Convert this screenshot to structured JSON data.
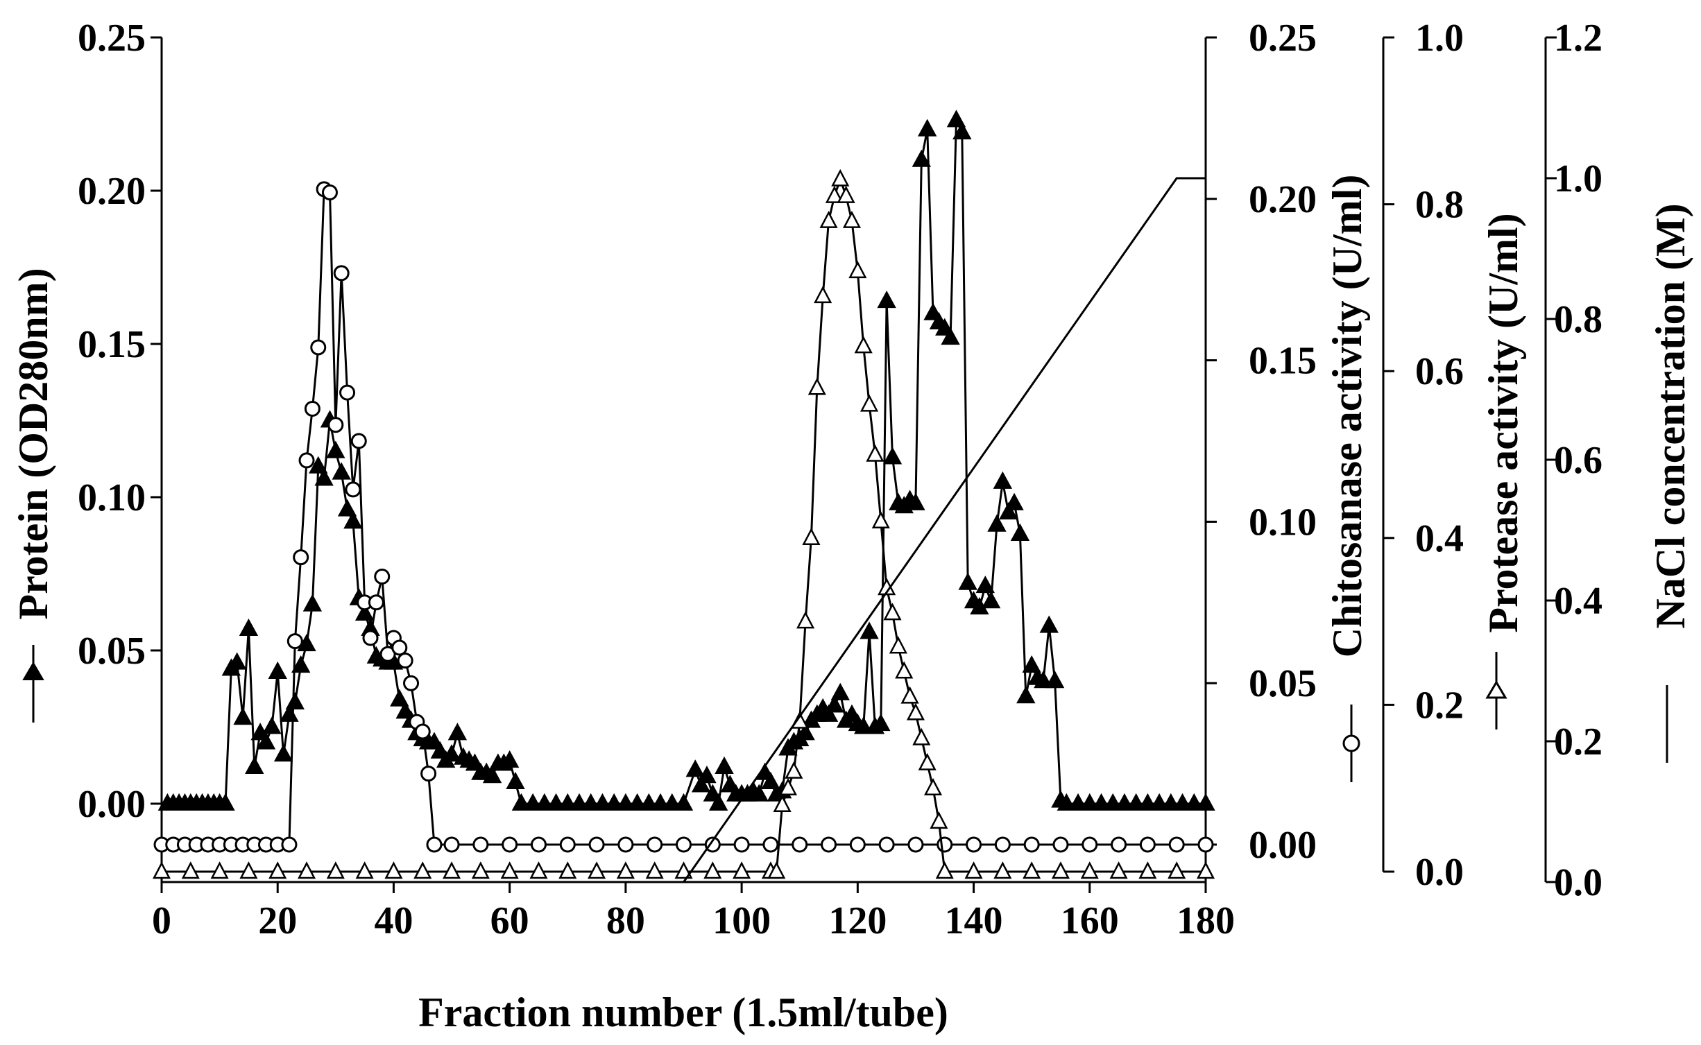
{
  "chart_data": {
    "type": "line",
    "title": "",
    "xlabel": "Fraction number (1.5ml/tube)",
    "xlim": [
      0,
      180
    ],
    "x_ticks": [
      0,
      20,
      40,
      60,
      80,
      100,
      120,
      140,
      160,
      180
    ],
    "axes": {
      "protein": {
        "label": "Protein (OD280nm)",
        "range": [
          -0.025,
          0.25
        ],
        "ticks": [
          "0.00",
          "0.05",
          "0.10",
          "0.15",
          "0.20",
          "0.25"
        ]
      },
      "chitosanase": {
        "label": "Chitosanase activity (U/ml)",
        "range": [
          -0.01,
          0.25
        ],
        "ticks": [
          "0.00",
          "0.05",
          "0.10",
          "0.15",
          "0.20",
          "0.25"
        ]
      },
      "protease": {
        "label": "Protease activity (U/ml)",
        "range": [
          0,
          1.0
        ],
        "ticks": [
          "0.0",
          "0.2",
          "0.4",
          "0.6",
          "0.8",
          "1.0"
        ]
      },
      "nacl": {
        "label": "NaCl concentration (M)",
        "range": [
          0,
          1.2
        ],
        "ticks": [
          "0.0",
          "0.2",
          "0.4",
          "0.6",
          "0.8",
          "1.0",
          "1.2"
        ]
      }
    },
    "grid": false,
    "series": [
      {
        "marker": "filled-triangle",
        "axis": "protein",
        "points": [
          [
            1,
            0
          ],
          [
            2,
            0
          ],
          [
            3,
            0
          ],
          [
            4,
            0
          ],
          [
            5,
            0
          ],
          [
            6,
            0
          ],
          [
            7,
            0
          ],
          [
            8,
            0
          ],
          [
            9,
            0
          ],
          [
            10,
            0
          ],
          [
            11,
            0
          ],
          [
            12,
            0.044
          ],
          [
            13,
            0.046
          ],
          [
            14,
            0.028
          ],
          [
            15,
            0.057
          ],
          [
            16,
            0.012
          ],
          [
            17,
            0.023
          ],
          [
            18,
            0.02
          ],
          [
            19,
            0.025
          ],
          [
            20,
            0.043
          ],
          [
            21,
            0.016
          ],
          [
            22,
            0.029
          ],
          [
            23,
            0.033
          ],
          [
            24,
            0.045
          ],
          [
            25,
            0.052
          ],
          [
            26,
            0.065
          ],
          [
            27,
            0.11
          ],
          [
            28,
            0.106
          ],
          [
            29,
            0.125
          ],
          [
            30,
            0.115
          ],
          [
            31,
            0.108
          ],
          [
            32,
            0.096
          ],
          [
            33,
            0.092
          ],
          [
            34,
            0.067
          ],
          [
            35,
            0.062
          ],
          [
            36,
            0.057
          ],
          [
            37,
            0.048
          ],
          [
            38,
            0.047
          ],
          [
            39,
            0.046
          ],
          [
            40,
            0.046
          ],
          [
            41,
            0.034
          ],
          [
            42,
            0.03
          ],
          [
            43,
            0.027
          ],
          [
            44,
            0.023
          ],
          [
            45,
            0.021
          ],
          [
            46,
            0.02
          ],
          [
            47,
            0.02
          ],
          [
            48,
            0.017
          ],
          [
            49,
            0.014
          ],
          [
            50,
            0.016
          ],
          [
            51,
            0.023
          ],
          [
            52,
            0.015
          ],
          [
            53,
            0.014
          ],
          [
            54,
            0.013
          ],
          [
            55,
            0.01
          ],
          [
            56,
            0.01
          ],
          [
            57,
            0.009
          ],
          [
            58,
            0.013
          ],
          [
            59,
            0.013
          ],
          [
            60,
            0.014
          ],
          [
            61,
            0.007
          ],
          [
            62,
            0
          ],
          [
            64,
            0
          ],
          [
            66,
            0
          ],
          [
            68,
            0
          ],
          [
            70,
            0
          ],
          [
            72,
            0
          ],
          [
            74,
            0
          ],
          [
            76,
            0
          ],
          [
            78,
            0
          ],
          [
            80,
            0
          ],
          [
            82,
            0
          ],
          [
            84,
            0
          ],
          [
            86,
            0
          ],
          [
            88,
            0
          ],
          [
            90,
            0
          ],
          [
            92,
            0.011
          ],
          [
            93,
            0.006
          ],
          [
            94,
            0.009
          ],
          [
            95,
            0.003
          ],
          [
            96,
            0
          ],
          [
            97,
            0.012
          ],
          [
            98,
            0.006
          ],
          [
            99,
            0.003
          ],
          [
            100,
            0.003
          ],
          [
            101,
            0.003
          ],
          [
            102,
            0.004
          ],
          [
            103,
            0.003
          ],
          [
            104,
            0.01
          ],
          [
            105,
            0.007
          ],
          [
            106,
            0.003
          ],
          [
            107,
            0.004
          ],
          [
            108,
            0.018
          ],
          [
            109,
            0.02
          ],
          [
            110,
            0.021
          ],
          [
            111,
            0.023
          ],
          [
            112,
            0.027
          ],
          [
            113,
            0.029
          ],
          [
            114,
            0.031
          ],
          [
            115,
            0.029
          ],
          [
            116,
            0.032
          ],
          [
            117,
            0.036
          ],
          [
            118,
            0.027
          ],
          [
            119,
            0.029
          ],
          [
            120,
            0.026
          ],
          [
            121,
            0.025
          ],
          [
            122,
            0.056
          ],
          [
            123,
            0.025
          ],
          [
            124,
            0.026
          ],
          [
            125,
            0.164
          ],
          [
            126,
            0.113
          ],
          [
            127,
            0.098
          ],
          [
            128,
            0.097
          ],
          [
            129,
            0.099
          ],
          [
            130,
            0.098
          ],
          [
            131,
            0.21
          ],
          [
            132,
            0.22
          ],
          [
            133,
            0.16
          ],
          [
            134,
            0.157
          ],
          [
            135,
            0.155
          ],
          [
            136,
            0.152
          ],
          [
            137,
            0.223
          ],
          [
            138,
            0.219
          ],
          [
            139,
            0.072
          ],
          [
            140,
            0.066
          ],
          [
            141,
            0.064
          ],
          [
            142,
            0.071
          ],
          [
            143,
            0.066
          ],
          [
            144,
            0.091
          ],
          [
            145,
            0.105
          ],
          [
            146,
            0.095
          ],
          [
            147,
            0.098
          ],
          [
            148,
            0.088
          ],
          [
            149,
            0.035
          ],
          [
            150,
            0.045
          ],
          [
            151,
            0.041
          ],
          [
            152,
            0.04
          ],
          [
            153,
            0.058
          ],
          [
            154,
            0.04
          ],
          [
            155,
            0.001
          ],
          [
            156,
            0
          ],
          [
            158,
            0
          ],
          [
            160,
            0
          ],
          [
            162,
            0
          ],
          [
            164,
            0
          ],
          [
            166,
            0
          ],
          [
            168,
            0
          ],
          [
            170,
            0
          ],
          [
            172,
            0
          ],
          [
            174,
            0
          ],
          [
            176,
            0
          ],
          [
            178,
            0
          ],
          [
            180,
            0
          ]
        ]
      },
      {
        "marker": "open-circle",
        "axis": "chitosanase",
        "points": [
          [
            0,
            0
          ],
          [
            2,
            0
          ],
          [
            4,
            0
          ],
          [
            6,
            0
          ],
          [
            8,
            0
          ],
          [
            10,
            0
          ],
          [
            12,
            0
          ],
          [
            14,
            0
          ],
          [
            16,
            0
          ],
          [
            18,
            0
          ],
          [
            20,
            0
          ],
          [
            22,
            0
          ],
          [
            23,
            0.063
          ],
          [
            24,
            0.089
          ],
          [
            25,
            0.119
          ],
          [
            26,
            0.135
          ],
          [
            27,
            0.154
          ],
          [
            28,
            0.203
          ],
          [
            29,
            0.202
          ],
          [
            30,
            0.13
          ],
          [
            31,
            0.177
          ],
          [
            32,
            0.14
          ],
          [
            33,
            0.11
          ],
          [
            34,
            0.125
          ],
          [
            35,
            0.075
          ],
          [
            36,
            0.064
          ],
          [
            37,
            0.075
          ],
          [
            38,
            0.083
          ],
          [
            39,
            0.059
          ],
          [
            40,
            0.064
          ],
          [
            41,
            0.061
          ],
          [
            42,
            0.057
          ],
          [
            43,
            0.05
          ],
          [
            44,
            0.038
          ],
          [
            45,
            0.035
          ],
          [
            46,
            0.022
          ],
          [
            47,
            0
          ],
          [
            50,
            0
          ],
          [
            55,
            0
          ],
          [
            60,
            0
          ],
          [
            65,
            0
          ],
          [
            70,
            0
          ],
          [
            75,
            0
          ],
          [
            80,
            0
          ],
          [
            85,
            0
          ],
          [
            90,
            0
          ],
          [
            95,
            0
          ],
          [
            100,
            0
          ],
          [
            105,
            0
          ],
          [
            110,
            0
          ],
          [
            115,
            0
          ],
          [
            120,
            0
          ],
          [
            125,
            0
          ],
          [
            130,
            0
          ],
          [
            135,
            0
          ],
          [
            140,
            0
          ],
          [
            145,
            0
          ],
          [
            150,
            0
          ],
          [
            155,
            0
          ],
          [
            160,
            0
          ],
          [
            165,
            0
          ],
          [
            170,
            0
          ],
          [
            175,
            0
          ],
          [
            180,
            0
          ]
        ]
      },
      {
        "marker": "open-triangle",
        "axis": "protease",
        "points": [
          [
            0,
            0
          ],
          [
            5,
            0
          ],
          [
            10,
            0
          ],
          [
            15,
            0
          ],
          [
            20,
            0
          ],
          [
            25,
            0
          ],
          [
            30,
            0
          ],
          [
            35,
            0
          ],
          [
            40,
            0
          ],
          [
            45,
            0
          ],
          [
            50,
            0
          ],
          [
            55,
            0
          ],
          [
            60,
            0
          ],
          [
            65,
            0
          ],
          [
            70,
            0
          ],
          [
            75,
            0
          ],
          [
            80,
            0
          ],
          [
            85,
            0
          ],
          [
            90,
            0
          ],
          [
            95,
            0
          ],
          [
            100,
            0
          ],
          [
            105,
            0
          ],
          [
            106,
            0
          ],
          [
            107,
            0.08
          ],
          [
            108,
            0.1
          ],
          [
            109,
            0.12
          ],
          [
            110,
            0.18
          ],
          [
            111,
            0.3
          ],
          [
            112,
            0.4
          ],
          [
            113,
            0.58
          ],
          [
            114,
            0.69
          ],
          [
            115,
            0.78
          ],
          [
            116,
            0.81
          ],
          [
            117,
            0.83
          ],
          [
            118,
            0.81
          ],
          [
            119,
            0.78
          ],
          [
            120,
            0.72
          ],
          [
            121,
            0.63
          ],
          [
            122,
            0.56
          ],
          [
            123,
            0.5
          ],
          [
            124,
            0.42
          ],
          [
            125,
            0.34
          ],
          [
            126,
            0.31
          ],
          [
            127,
            0.27
          ],
          [
            128,
            0.24
          ],
          [
            129,
            0.21
          ],
          [
            130,
            0.19
          ],
          [
            131,
            0.16
          ],
          [
            132,
            0.13
          ],
          [
            133,
            0.1
          ],
          [
            134,
            0.06
          ],
          [
            135,
            0
          ],
          [
            140,
            0
          ],
          [
            145,
            0
          ],
          [
            150,
            0
          ],
          [
            155,
            0
          ],
          [
            160,
            0
          ],
          [
            165,
            0
          ],
          [
            170,
            0
          ],
          [
            175,
            0
          ],
          [
            180,
            0
          ]
        ]
      },
      {
        "marker": "none",
        "axis": "nacl",
        "points": [
          [
            0,
            0
          ],
          [
            90,
            0
          ],
          [
            175,
            1.0
          ],
          [
            180,
            1.0
          ]
        ]
      }
    ]
  }
}
